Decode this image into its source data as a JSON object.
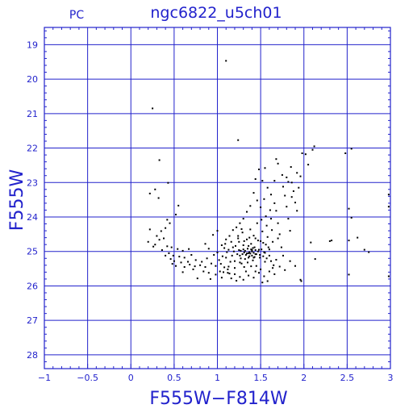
{
  "chart_data": {
    "type": "scatter",
    "title": "ngc6822_u5ch01",
    "corner_label": "PC",
    "xlabel": "F555W−F814W",
    "ylabel": "F555W",
    "xlim": [
      -1,
      3
    ],
    "ylim": [
      28.4,
      18.5
    ],
    "y_inverted": true,
    "grid": true,
    "x_ticks": [
      -1,
      -0.5,
      0,
      0.5,
      1,
      1.5,
      2,
      2.5,
      3
    ],
    "x_tick_labels": [
      "−1",
      "−0.5",
      "0",
      "0.5",
      "1",
      "1.5",
      "2",
      "2.5",
      "3"
    ],
    "y_ticks": [
      19,
      20,
      21,
      22,
      23,
      24,
      25,
      26,
      27,
      28
    ],
    "y_tick_labels": [
      "19",
      "20",
      "21",
      "22",
      "23",
      "24",
      "25",
      "26",
      "27",
      "28"
    ],
    "colors": {
      "frame": "#2222cc",
      "text": "#2222cc",
      "points": "#000000"
    },
    "points": [
      [
        1.1,
        19.47
      ],
      [
        0.25,
        20.85
      ],
      [
        1.24,
        21.77
      ],
      [
        0.33,
        22.35
      ],
      [
        0.28,
        23.2
      ],
      [
        0.22,
        23.32
      ],
      [
        0.43,
        23.01
      ],
      [
        0.32,
        23.45
      ],
      [
        0.55,
        23.67
      ],
      [
        0.52,
        23.93
      ],
      [
        0.42,
        24.08
      ],
      [
        0.45,
        24.18
      ],
      [
        0.22,
        24.36
      ],
      [
        0.4,
        24.32
      ],
      [
        0.35,
        24.41
      ],
      [
        0.3,
        24.55
      ],
      [
        0.38,
        24.62
      ],
      [
        0.2,
        24.72
      ],
      [
        0.28,
        24.8
      ],
      [
        0.42,
        24.85
      ],
      [
        0.47,
        24.88
      ],
      [
        0.54,
        24.93
      ],
      [
        0.6,
        24.98
      ],
      [
        0.67,
        24.93
      ],
      [
        0.44,
        25.05
      ],
      [
        0.49,
        25.12
      ],
      [
        0.56,
        25.15
      ],
      [
        0.62,
        25.18
      ],
      [
        0.5,
        25.28
      ],
      [
        0.58,
        25.32
      ],
      [
        0.68,
        25.38
      ],
      [
        0.52,
        25.42
      ],
      [
        0.74,
        25.43
      ],
      [
        0.8,
        25.4
      ],
      [
        0.86,
        25.45
      ],
      [
        0.72,
        25.52
      ],
      [
        0.84,
        25.58
      ],
      [
        0.9,
        25.62
      ],
      [
        0.98,
        25.67
      ],
      [
        0.77,
        25.78
      ],
      [
        0.92,
        25.8
      ],
      [
        1.0,
        24.4
      ],
      [
        0.95,
        24.52
      ],
      [
        1.1,
        24.65
      ],
      [
        1.05,
        24.82
      ],
      [
        1.0,
        25.03
      ],
      [
        1.02,
        25.25
      ],
      [
        0.98,
        25.42
      ],
      [
        1.03,
        25.58
      ],
      [
        1.05,
        25.76
      ],
      [
        1.1,
        25.18
      ],
      [
        1.13,
        24.95
      ],
      [
        1.12,
        25.52
      ],
      [
        1.14,
        25.64
      ],
      [
        1.16,
        24.72
      ],
      [
        1.18,
        24.88
      ],
      [
        1.2,
        25.28
      ],
      [
        1.2,
        25.48
      ],
      [
        1.22,
        24.3
      ],
      [
        1.22,
        25.85
      ],
      [
        1.24,
        24.55
      ],
      [
        1.25,
        24.96
      ],
      [
        1.26,
        25.12
      ],
      [
        1.28,
        25.35
      ],
      [
        1.29,
        24.45
      ],
      [
        1.3,
        24.82
      ],
      [
        1.31,
        25.03
      ],
      [
        1.32,
        25.22
      ],
      [
        1.33,
        25.58
      ],
      [
        1.34,
        24.65
      ],
      [
        1.35,
        24.92
      ],
      [
        1.36,
        25.05
      ],
      [
        1.37,
        25.14
      ],
      [
        1.38,
        24.36
      ],
      [
        1.39,
        24.78
      ],
      [
        1.4,
        25.0
      ],
      [
        1.41,
        25.26
      ],
      [
        1.42,
        24.54
      ],
      [
        1.43,
        24.88
      ],
      [
        1.44,
        25.08
      ],
      [
        1.45,
        25.42
      ],
      [
        1.46,
        24.18
      ],
      [
        1.47,
        24.68
      ],
      [
        1.48,
        24.95
      ],
      [
        1.49,
        25.18
      ],
      [
        1.5,
        25.52
      ],
      [
        1.51,
        24.08
      ],
      [
        1.52,
        24.42
      ],
      [
        1.53,
        24.75
      ],
      [
        1.54,
        25.02
      ],
      [
        1.55,
        25.3
      ],
      [
        1.56,
        23.98
      ],
      [
        1.57,
        24.25
      ],
      [
        1.58,
        24.58
      ],
      [
        1.59,
        24.88
      ],
      [
        1.6,
        25.12
      ],
      [
        1.61,
        23.8
      ],
      [
        1.62,
        24.05
      ],
      [
        1.63,
        24.38
      ],
      [
        1.64,
        24.72
      ],
      [
        1.65,
        25.4
      ],
      [
        1.66,
        23.6
      ],
      [
        1.68,
        23.82
      ],
      [
        1.7,
        24.18
      ],
      [
        1.72,
        24.5
      ],
      [
        1.74,
        24.88
      ],
      [
        1.76,
        23.12
      ],
      [
        1.78,
        23.38
      ],
      [
        1.8,
        23.7
      ],
      [
        1.82,
        24.05
      ],
      [
        1.84,
        24.4
      ],
      [
        1.86,
        23.0
      ],
      [
        1.88,
        23.25
      ],
      [
        1.9,
        23.58
      ],
      [
        1.92,
        22.72
      ],
      [
        1.94,
        23.15
      ],
      [
        1.96,
        22.82
      ],
      [
        1.98,
        22.15
      ],
      [
        2.02,
        22.18
      ],
      [
        2.05,
        22.48
      ],
      [
        2.1,
        22.05
      ],
      [
        2.12,
        21.95
      ],
      [
        2.13,
        25.22
      ],
      [
        1.7,
        22.45
      ],
      [
        1.75,
        22.78
      ],
      [
        1.55,
        22.58
      ],
      [
        1.48,
        22.62
      ],
      [
        1.44,
        22.9
      ],
      [
        1.52,
        22.95
      ],
      [
        1.58,
        23.15
      ],
      [
        1.62,
        23.35
      ],
      [
        1.66,
        22.95
      ],
      [
        1.68,
        22.32
      ],
      [
        1.8,
        22.85
      ],
      [
        1.85,
        22.55
      ],
      [
        1.42,
        23.3
      ],
      [
        1.46,
        23.52
      ],
      [
        1.5,
        23.72
      ],
      [
        1.54,
        23.48
      ],
      [
        1.38,
        23.68
      ],
      [
        1.34,
        23.85
      ],
      [
        1.3,
        24.05
      ],
      [
        1.26,
        24.18
      ],
      [
        1.28,
        24.35
      ],
      [
        1.24,
        24.62
      ],
      [
        1.18,
        24.38
      ],
      [
        1.14,
        24.55
      ],
      [
        1.08,
        24.9
      ],
      [
        1.06,
        25.14
      ],
      [
        1.04,
        25.36
      ],
      [
        1.08,
        25.46
      ],
      [
        1.12,
        25.62
      ],
      [
        1.16,
        25.78
      ],
      [
        1.2,
        25.66
      ],
      [
        1.26,
        25.74
      ],
      [
        1.3,
        25.82
      ],
      [
        1.36,
        25.7
      ],
      [
        1.42,
        25.76
      ],
      [
        1.48,
        25.62
      ],
      [
        1.54,
        25.72
      ],
      [
        1.6,
        25.58
      ],
      [
        1.66,
        25.66
      ],
      [
        1.72,
        25.44
      ],
      [
        1.78,
        25.54
      ],
      [
        1.84,
        25.28
      ],
      [
        1.9,
        25.42
      ],
      [
        1.96,
        25.82
      ],
      [
        2.3,
        24.7
      ],
      [
        2.32,
        24.68
      ],
      [
        2.08,
        24.74
      ],
      [
        2.52,
        23.76
      ],
      [
        2.52,
        24.68
      ],
      [
        2.55,
        24.02
      ],
      [
        2.62,
        24.6
      ],
      [
        2.7,
        24.95
      ],
      [
        2.75,
        25.02
      ],
      [
        2.52,
        25.67
      ],
      [
        2.98,
        23.35
      ],
      [
        2.98,
        23.7
      ],
      [
        2.98,
        25.72
      ],
      [
        2.55,
        22.02
      ],
      [
        2.48,
        22.15
      ],
      [
        1.82,
        22.98
      ],
      [
        1.86,
        23.42
      ],
      [
        1.92,
        23.82
      ],
      [
        1.7,
        24.62
      ],
      [
        1.76,
        25.12
      ],
      [
        1.68,
        25.24
      ],
      [
        1.64,
        25.48
      ],
      [
        1.58,
        25.86
      ],
      [
        1.52,
        25.9
      ],
      [
        1.44,
        25.58
      ],
      [
        1.39,
        25.43
      ],
      [
        1.35,
        25.32
      ],
      [
        1.31,
        25.45
      ],
      [
        1.27,
        25.2
      ],
      [
        1.23,
        25.08
      ],
      [
        1.21,
        24.84
      ],
      [
        1.19,
        25.0
      ],
      [
        1.17,
        25.12
      ],
      [
        1.15,
        25.3
      ],
      [
        1.13,
        25.44
      ],
      [
        1.11,
        25.02
      ],
      [
        1.09,
        24.78
      ],
      [
        1.07,
        25.6
      ],
      [
        1.32,
        24.98
      ],
      [
        1.33,
        25.1
      ],
      [
        1.36,
        24.84
      ],
      [
        1.37,
        25.02
      ],
      [
        1.39,
        24.94
      ],
      [
        1.4,
        25.12
      ],
      [
        1.41,
        24.9
      ],
      [
        1.42,
        25.04
      ],
      [
        1.43,
        25.16
      ],
      [
        1.44,
        24.96
      ],
      [
        1.45,
        25.08
      ],
      [
        1.34,
        25.06
      ],
      [
        1.38,
        25.06
      ],
      [
        1.36,
        25.18
      ],
      [
        1.4,
        24.96
      ],
      [
        1.42,
        25.18
      ],
      [
        1.3,
        24.94
      ],
      [
        1.29,
        25.08
      ],
      [
        1.27,
        24.98
      ],
      [
        1.26,
        25.32
      ],
      [
        1.47,
        25.0
      ],
      [
        1.49,
        25.1
      ],
      [
        1.51,
        24.94
      ],
      [
        1.53,
        25.14
      ],
      [
        1.55,
        25.04
      ],
      [
        1.57,
        25.2
      ],
      [
        1.25,
        24.72
      ],
      [
        1.31,
        24.7
      ],
      [
        1.37,
        24.6
      ],
      [
        1.44,
        24.62
      ],
      [
        1.5,
        24.7
      ],
      [
        1.56,
        24.8
      ],
      [
        1.6,
        24.94
      ],
      [
        1.62,
        25.28
      ],
      [
        1.97,
        25.86
      ],
      [
        0.62,
        25.45
      ],
      [
        0.66,
        25.3
      ],
      [
        0.7,
        25.1
      ],
      [
        0.75,
        25.25
      ],
      [
        0.82,
        25.3
      ],
      [
        0.88,
        25.2
      ],
      [
        0.93,
        25.35
      ],
      [
        0.96,
        25.1
      ],
      [
        0.9,
        24.92
      ],
      [
        0.86,
        24.78
      ],
      [
        0.26,
        24.86
      ],
      [
        0.33,
        24.66
      ],
      [
        0.36,
        24.96
      ],
      [
        0.4,
        25.12
      ],
      [
        0.46,
        25.22
      ],
      [
        0.48,
        25.36
      ],
      [
        0.6,
        25.6
      ]
    ]
  }
}
